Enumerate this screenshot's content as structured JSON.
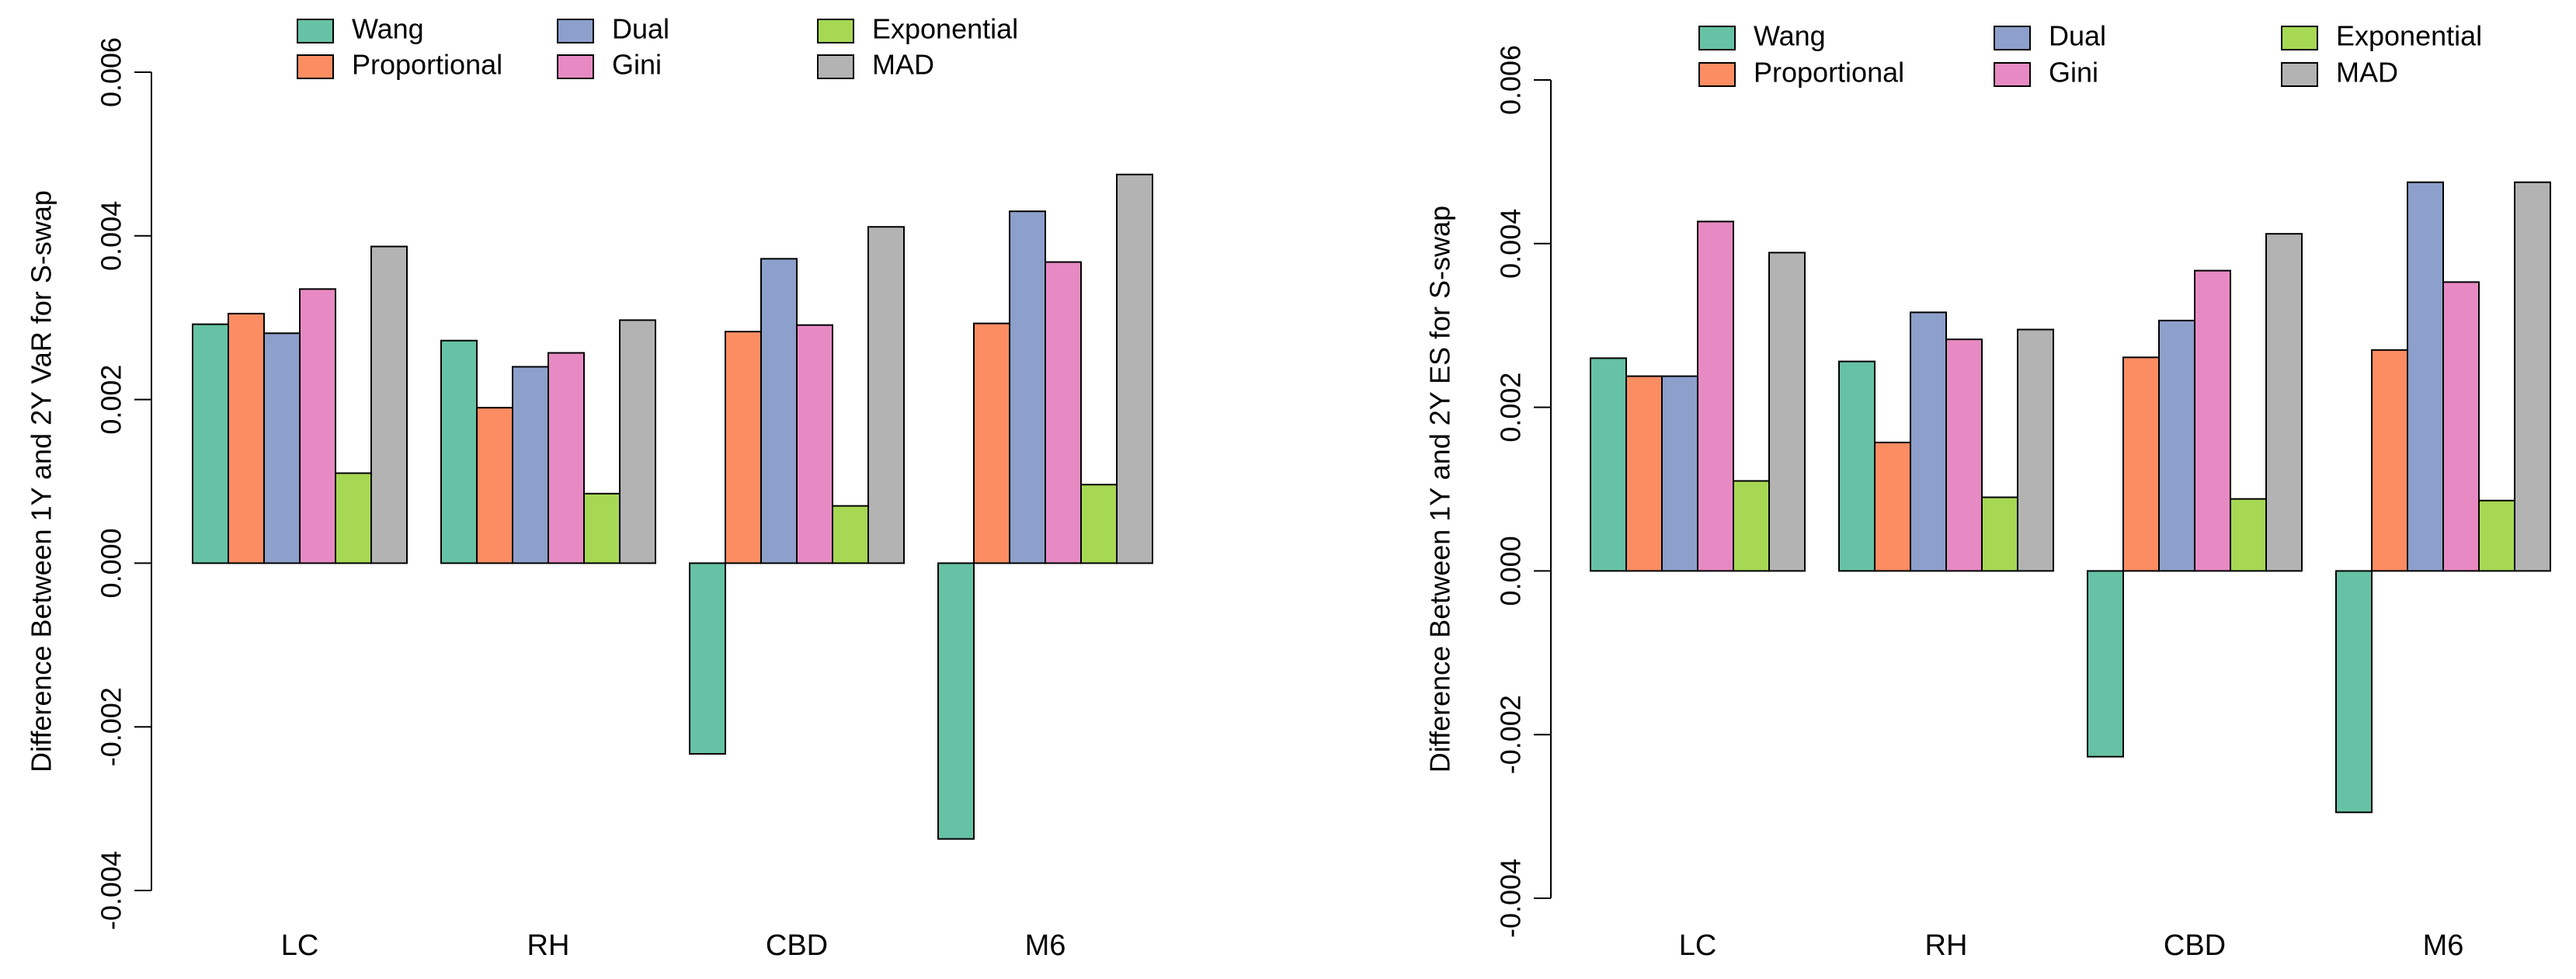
{
  "chart_data": [
    {
      "type": "bar",
      "title": "",
      "xlabel": "",
      "ylabel": "Difference Between 1Y and 2Y VaR for S-swap",
      "ylim": [
        -0.004,
        0.006
      ],
      "yticks": [
        -0.004,
        -0.002,
        0.0,
        0.002,
        0.004,
        0.006
      ],
      "ytick_labels": [
        "-0.004",
        "-0.002",
        "0.000",
        "0.002",
        "0.004",
        "0.006"
      ],
      "categories": [
        "LC",
        "RH",
        "CBD",
        "M6"
      ],
      "series": [
        {
          "name": "Wang",
          "color": "#66C2A5",
          "values": [
            0.00292,
            0.00272,
            -0.00233,
            -0.00337
          ]
        },
        {
          "name": "Proportional",
          "color": "#FC8D62",
          "values": [
            0.00305,
            0.0019,
            0.00283,
            0.00293
          ]
        },
        {
          "name": "Dual",
          "color": "#8DA0CB",
          "values": [
            0.00281,
            0.0024,
            0.00372,
            0.0043
          ]
        },
        {
          "name": "Gini",
          "color": "#E78AC3",
          "values": [
            0.00335,
            0.00257,
            0.00291,
            0.00368
          ]
        },
        {
          "name": "Exponential",
          "color": "#A6D854",
          "values": [
            0.0011,
            0.00085,
            0.0007,
            0.00096
          ]
        },
        {
          "name": "MAD",
          "color": "#B3B3B3",
          "values": [
            0.00387,
            0.00297,
            0.00411,
            0.00475
          ]
        }
      ],
      "legend": {
        "position": "top",
        "items": [
          "Wang",
          "Dual",
          "Exponential",
          "Proportional",
          "Gini",
          "MAD"
        ]
      },
      "grid": false
    },
    {
      "type": "bar",
      "title": "",
      "xlabel": "",
      "ylabel": "Difference Between 1Y and 2Y ES for S-swap",
      "ylim": [
        -0.004,
        0.006
      ],
      "yticks": [
        -0.004,
        -0.002,
        0.0,
        0.002,
        0.004,
        0.006
      ],
      "ytick_labels": [
        "-0.004",
        "-0.002",
        "0.000",
        "0.002",
        "0.004",
        "0.006"
      ],
      "categories": [
        "LC",
        "RH",
        "CBD",
        "M6"
      ],
      "series": [
        {
          "name": "Wang",
          "color": "#66C2A5",
          "values": [
            0.0026,
            0.00256,
            -0.00227,
            -0.00295
          ]
        },
        {
          "name": "Proportional",
          "color": "#FC8D62",
          "values": [
            0.00238,
            0.00157,
            0.00261,
            0.0027
          ]
        },
        {
          "name": "Dual",
          "color": "#8DA0CB",
          "values": [
            0.00238,
            0.00316,
            0.00306,
            0.00475
          ]
        },
        {
          "name": "Gini",
          "color": "#E78AC3",
          "values": [
            0.00427,
            0.00283,
            0.00367,
            0.00353
          ]
        },
        {
          "name": "Exponential",
          "color": "#A6D854",
          "values": [
            0.0011,
            0.0009,
            0.00088,
            0.00086
          ]
        },
        {
          "name": "MAD",
          "color": "#B3B3B3",
          "values": [
            0.00389,
            0.00295,
            0.00412,
            0.00475
          ]
        }
      ],
      "legend": {
        "position": "top",
        "items": [
          "Wang",
          "Dual",
          "Exponential",
          "Proportional",
          "Gini",
          "MAD"
        ]
      },
      "grid": false
    }
  ]
}
